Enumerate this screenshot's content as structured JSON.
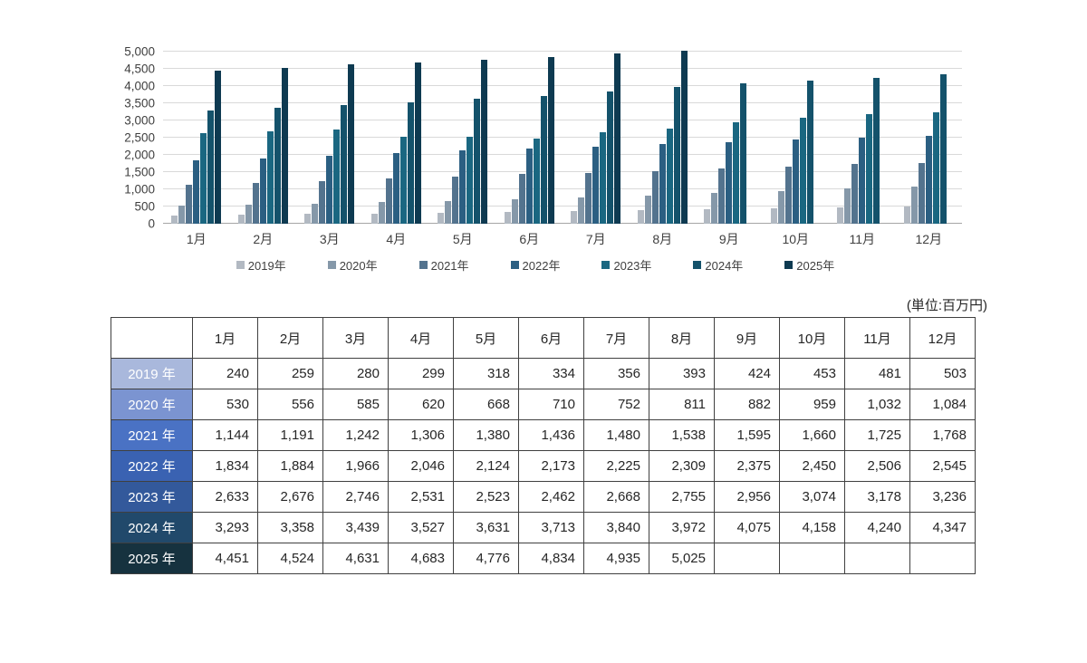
{
  "unit_label": "(単位:百万円)",
  "chart_data": {
    "type": "bar",
    "title": "",
    "categories": [
      "1月",
      "2月",
      "3月",
      "4月",
      "5月",
      "6月",
      "7月",
      "8月",
      "9月",
      "10月",
      "11月",
      "12月"
    ],
    "xlabel": "",
    "ylabel": "",
    "ylim": [
      0,
      5000
    ],
    "y_tick_step": 500,
    "grid": true,
    "legend_position": "bottom",
    "series": [
      {
        "name": "2019年",
        "color": "#b2b9c2",
        "values": [
          240,
          259,
          280,
          299,
          318,
          334,
          356,
          393,
          424,
          453,
          481,
          503
        ]
      },
      {
        "name": "2020年",
        "color": "#8598a9",
        "values": [
          530,
          556,
          585,
          620,
          668,
          710,
          752,
          811,
          882,
          959,
          1032,
          1084
        ]
      },
      {
        "name": "2021年",
        "color": "#53738e",
        "values": [
          1144,
          1191,
          1242,
          1306,
          1380,
          1436,
          1480,
          1538,
          1595,
          1660,
          1725,
          1768
        ]
      },
      {
        "name": "2022年",
        "color": "#2b5f82",
        "values": [
          1834,
          1884,
          1966,
          2046,
          2124,
          2173,
          2225,
          2309,
          2375,
          2450,
          2506,
          2545
        ]
      },
      {
        "name": "2023年",
        "color": "#1a6781",
        "values": [
          2633,
          2676,
          2746,
          2531,
          2523,
          2462,
          2668,
          2755,
          2956,
          3074,
          3178,
          3236
        ]
      },
      {
        "name": "2024年",
        "color": "#14526b",
        "values": [
          3293,
          3358,
          3439,
          3527,
          3631,
          3713,
          3840,
          3972,
          4075,
          4158,
          4240,
          4347
        ]
      },
      {
        "name": "2025年",
        "color": "#0e3a51",
        "values": [
          4451,
          4524,
          4631,
          4683,
          4776,
          4834,
          4935,
          5025,
          null,
          null,
          null,
          null
        ]
      }
    ]
  },
  "table": {
    "corner_label": "",
    "column_headers": [
      "1月",
      "2月",
      "3月",
      "4月",
      "5月",
      "6月",
      "7月",
      "8月",
      "9月",
      "10月",
      "11月",
      "12月"
    ],
    "rows": [
      {
        "label": "2019 年",
        "bg": "#a9b8dc",
        "cells": [
          "240",
          "259",
          "280",
          "299",
          "318",
          "334",
          "356",
          "393",
          "424",
          "453",
          "481",
          "503"
        ]
      },
      {
        "label": "2020 年",
        "bg": "#7b94d1",
        "cells": [
          "530",
          "556",
          "585",
          "620",
          "668",
          "710",
          "752",
          "811",
          "882",
          "959",
          "1,032",
          "1,084"
        ]
      },
      {
        "label": "2021 年",
        "bg": "#4a72c4",
        "cells": [
          "1,144",
          "1,191",
          "1,242",
          "1,306",
          "1,380",
          "1,436",
          "1,480",
          "1,538",
          "1,595",
          "1,660",
          "1,725",
          "1,768"
        ]
      },
      {
        "label": "2022 年",
        "bg": "#3a62b2",
        "cells": [
          "1,834",
          "1,884",
          "1,966",
          "2,046",
          "2,124",
          "2,173",
          "2,225",
          "2,309",
          "2,375",
          "2,450",
          "2,506",
          "2,545"
        ]
      },
      {
        "label": "2023 年",
        "bg": "#33599b",
        "cells": [
          "2,633",
          "2,676",
          "2,746",
          "2,531",
          "2,523",
          "2,462",
          "2,668",
          "2,755",
          "2,956",
          "3,074",
          "3,178",
          "3,236"
        ]
      },
      {
        "label": "2024 年",
        "bg": "#21496b",
        "cells": [
          "3,293",
          "3,358",
          "3,439",
          "3,527",
          "3,631",
          "3,713",
          "3,840",
          "3,972",
          "4,075",
          "4,158",
          "4,240",
          "4,347"
        ]
      },
      {
        "label": "2025 年",
        "bg": "#16323f",
        "cells": [
          "4,451",
          "4,524",
          "4,631",
          "4,683",
          "4,776",
          "4,834",
          "4,935",
          "5,025",
          "",
          "",
          "",
          ""
        ]
      }
    ]
  }
}
